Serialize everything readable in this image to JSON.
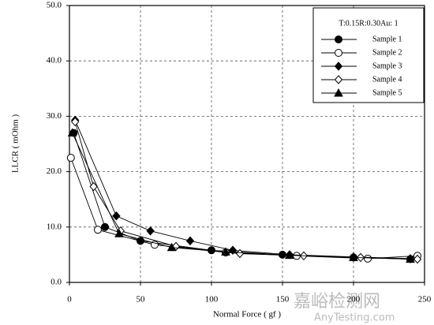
{
  "chart_data": {
    "type": "line",
    "xlabel": "Normal Force ( gf )",
    "ylabel": "LLCR ( mOhm )",
    "legend_title": "T:0.15R:0.30Au: 1",
    "legend": "top-right",
    "grid": true,
    "xlim": [
      0,
      250
    ],
    "xticks": [
      0,
      50,
      100,
      150,
      200,
      250
    ],
    "ylim": [
      0,
      50
    ],
    "yticks": [
      {
        "value": 0,
        "label": "0.0"
      },
      {
        "value": 10,
        "label": "10.0"
      },
      {
        "value": 20,
        "label": "20.0"
      },
      {
        "value": 30,
        "label": "30.0"
      },
      {
        "value": 40,
        "label": "40.0"
      },
      {
        "value": 50,
        "label": "50.0"
      }
    ],
    "series": [
      {
        "name": "Sample 1",
        "color": "#000000",
        "marker": "circle-filled",
        "x": [
          3,
          25,
          50,
          100,
          150,
          200,
          240
        ],
        "values": [
          27,
          10,
          7.5,
          5.8,
          5,
          4.5,
          4.2
        ]
      },
      {
        "name": "Sample 2",
        "color": "#000000",
        "marker": "circle-open",
        "x": [
          1,
          20,
          60,
          110,
          160,
          210,
          245
        ],
        "values": [
          22.5,
          9.5,
          6.8,
          5.4,
          4.8,
          4.3,
          4.8
        ]
      },
      {
        "name": "Sample 3",
        "color": "#000000",
        "marker": "diamond-filled",
        "x": [
          4,
          33,
          57,
          85,
          115,
          155,
          200,
          240
        ],
        "values": [
          29.3,
          12,
          9.3,
          7.5,
          5.8,
          5,
          4.6,
          4.3
        ]
      },
      {
        "name": "Sample 4",
        "color": "#000000",
        "marker": "diamond-open",
        "x": [
          4,
          17,
          36,
          75,
          120,
          165,
          205,
          245
        ],
        "values": [
          29,
          17.3,
          9.3,
          6.5,
          5.2,
          4.8,
          4.5,
          4.2
        ]
      },
      {
        "name": "Sample 5",
        "color": "#000000",
        "marker": "triangle-filled",
        "x": [
          2,
          35,
          72,
          110,
          155,
          200,
          240
        ],
        "values": [
          27,
          8.8,
          6.3,
          5.5,
          4.9,
          4.5,
          4.2
        ]
      }
    ]
  },
  "watermark": {
    "title": "嘉峪检测网",
    "url": "AnyTesting.com"
  }
}
